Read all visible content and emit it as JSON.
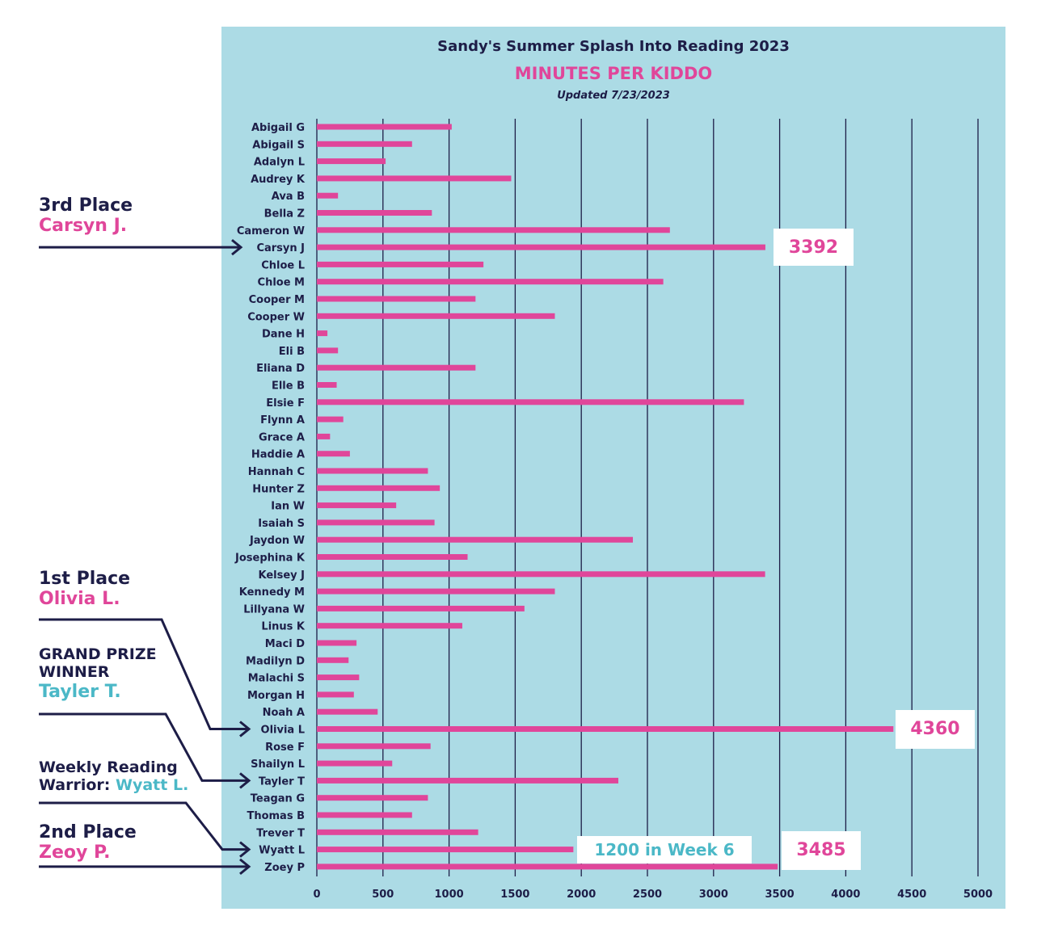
{
  "chart_data": {
    "type": "bar",
    "orientation": "horizontal",
    "title": "Sandy's Summer Splash Into Reading 2023",
    "subtitle": "MINUTES PER KIDDO",
    "updated": "Updated 7/23/2023",
    "xlim": [
      0,
      5000
    ],
    "x_ticks": [
      0,
      500,
      1000,
      1500,
      2000,
      2500,
      3000,
      3500,
      4000,
      4500,
      5000
    ],
    "grid": "vertical",
    "colors": {
      "bar": "#e0469a",
      "background": "#acdbe5",
      "grid": "#1d1d47",
      "text": "#1d1d47",
      "accent_teal": "#4bb8c7"
    },
    "categories": [
      "Abigail G",
      "Abigail S",
      "Adalyn L",
      "Audrey K",
      "Ava B",
      "Bella Z",
      "Cameron W",
      "Carsyn J",
      "Chloe L",
      "Chloe M",
      "Cooper M",
      "Cooper W",
      "Dane H",
      "Eli B",
      "Eliana D",
      "Elle B",
      "Elsie F",
      "Flynn A",
      "Grace A",
      "Haddie A",
      "Hannah C",
      "Hunter Z",
      "Ian W",
      "Isaiah S",
      "Jaydon W",
      "Josephina K",
      "Kelsey J",
      "Kennedy M",
      "Lillyana W",
      "Linus K",
      "Maci D",
      "Madilyn D",
      "Malachi S",
      "Morgan H",
      "Noah A",
      "Olivia L",
      "Rose F",
      "Shailyn L",
      "Tayler T",
      "Teagan G",
      "Thomas B",
      "Trever T",
      "Wyatt L",
      "Zoey P"
    ],
    "values": [
      1020,
      720,
      520,
      1470,
      160,
      870,
      2670,
      3392,
      1260,
      2620,
      1200,
      1800,
      80,
      160,
      1200,
      150,
      3230,
      200,
      100,
      250,
      840,
      930,
      600,
      890,
      2390,
      1140,
      3390,
      1800,
      1570,
      1100,
      300,
      240,
      320,
      280,
      460,
      4360,
      860,
      570,
      2280,
      840,
      720,
      1220,
      1940,
      3485
    ],
    "callouts": [
      {
        "category": "Carsyn J",
        "label": "3392"
      },
      {
        "category": "Olivia L",
        "label": "4360"
      },
      {
        "category": "Zoey P",
        "label": "3485"
      }
    ],
    "note": {
      "category": "Wyatt L",
      "label": "1200 in Week 6"
    }
  },
  "annotations": {
    "third": {
      "heading": "3rd Place",
      "name": "Carsyn J."
    },
    "first": {
      "heading": "1st Place",
      "name": "Olivia L."
    },
    "grand": {
      "line1": "GRAND PRIZE",
      "line2": "WINNER",
      "name": "Tayler T."
    },
    "weekly": {
      "line1": "Weekly Reading",
      "line2": "Warrior:",
      "name": "Wyatt L."
    },
    "second": {
      "heading": "2nd Place",
      "name": "Zeoy P."
    }
  }
}
